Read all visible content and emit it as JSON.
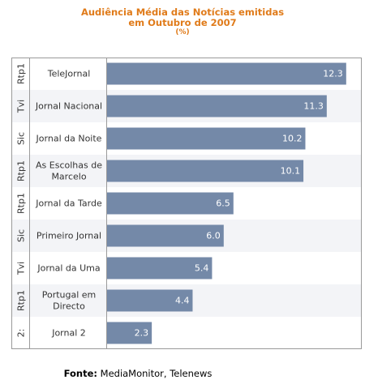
{
  "chart_data": {
    "type": "bar",
    "orientation": "horizontal",
    "title_lines": [
      "Audiência Média das Notícias emitidas",
      "em Outubro de 2007"
    ],
    "unit": "(%)",
    "channels": [
      "Rtp1",
      "Tvi",
      "Sic",
      "Rtp1",
      "Rtp1",
      "Sic",
      "Tvi",
      "Rtp1",
      "2:"
    ],
    "categories": [
      [
        "TeleJornal"
      ],
      [
        "Jornal Nacional"
      ],
      [
        "Jornal da Noite"
      ],
      [
        "As Escolhas de",
        "Marcelo"
      ],
      [
        "Jornal da Tarde"
      ],
      [
        "Primeiro Jornal"
      ],
      [
        "Jornal da Uma"
      ],
      [
        "Portugal em",
        "Directo"
      ],
      [
        "Jornal 2"
      ]
    ],
    "values": [
      12.3,
      11.3,
      10.2,
      10.1,
      6.5,
      6.0,
      5.4,
      4.4,
      2.3
    ],
    "value_labels": [
      "12.3",
      "11.3",
      "10.2",
      "10.1",
      "6.5",
      "6.0",
      "5.4",
      "4.4",
      "2.3"
    ],
    "xlim": [
      0,
      12.6
    ],
    "colors": {
      "bar": "#7489a8",
      "row_band": "#f3f4f7",
      "frame": "#9a9a9a",
      "title": "#e07b1a",
      "label": "#333333",
      "value_label": "#ffffff"
    }
  },
  "source": {
    "label": "Fonte:",
    "text": "MediaMonitor, Telenews"
  }
}
